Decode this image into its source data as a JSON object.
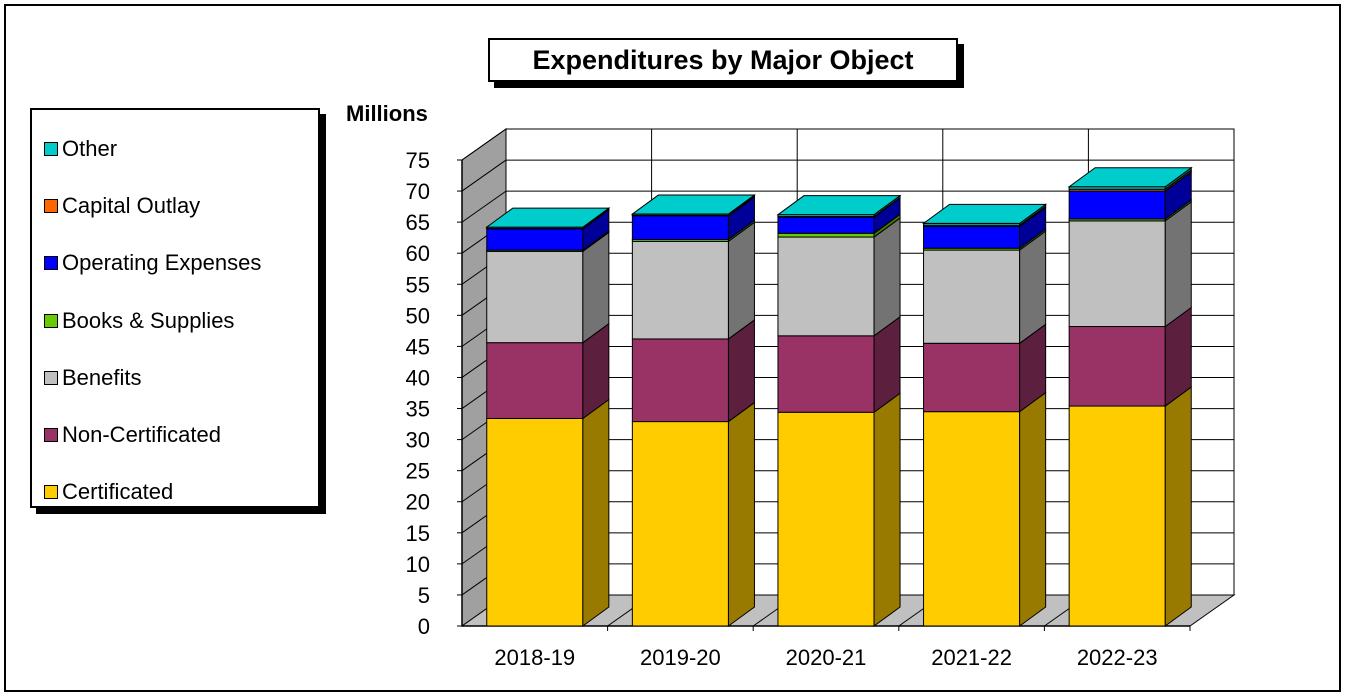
{
  "chart_data": {
    "type": "bar",
    "stacked": true,
    "three_d": true,
    "title": "Expenditures by Major Object",
    "ylabel": "Millions",
    "xlabel": "",
    "ylim": [
      0,
      75
    ],
    "ytick_step": 5,
    "yticks": [
      "0",
      "5",
      "10",
      "15",
      "20",
      "25",
      "30",
      "35",
      "40",
      "45",
      "50",
      "55",
      "60",
      "65",
      "70",
      "75"
    ],
    "grid": true,
    "legend_position": "left",
    "categories": [
      "2018-19",
      "2019-20",
      "2020-21",
      "2021-22",
      "2022-23"
    ],
    "series": [
      {
        "name": "Certificated",
        "color": "#FFCC00",
        "values": [
          33.4,
          32.9,
          34.4,
          34.5,
          35.4
        ]
      },
      {
        "name": "Non-Certificated",
        "color": "#993366",
        "values": [
          12.2,
          13.3,
          12.3,
          11.0,
          12.8
        ]
      },
      {
        "name": "Benefits",
        "color": "#C0C0C0",
        "values": [
          14.7,
          15.7,
          15.9,
          15.0,
          17.0
        ]
      },
      {
        "name": "Books & Supplies",
        "color": "#66CC00",
        "values": [
          0.2,
          0.3,
          0.6,
          0.3,
          0.3
        ]
      },
      {
        "name": "Operating Expenses",
        "color": "#0000FF",
        "values": [
          3.4,
          3.8,
          2.6,
          3.5,
          4.5
        ]
      },
      {
        "name": "Capital Outlay",
        "color": "#FF6600",
        "values": [
          0.1,
          0.1,
          0.1,
          0.2,
          0.3
        ]
      },
      {
        "name": "Other",
        "color": "#00CCCC",
        "values": [
          0.2,
          0.2,
          0.3,
          0.3,
          0.4
        ]
      }
    ]
  }
}
